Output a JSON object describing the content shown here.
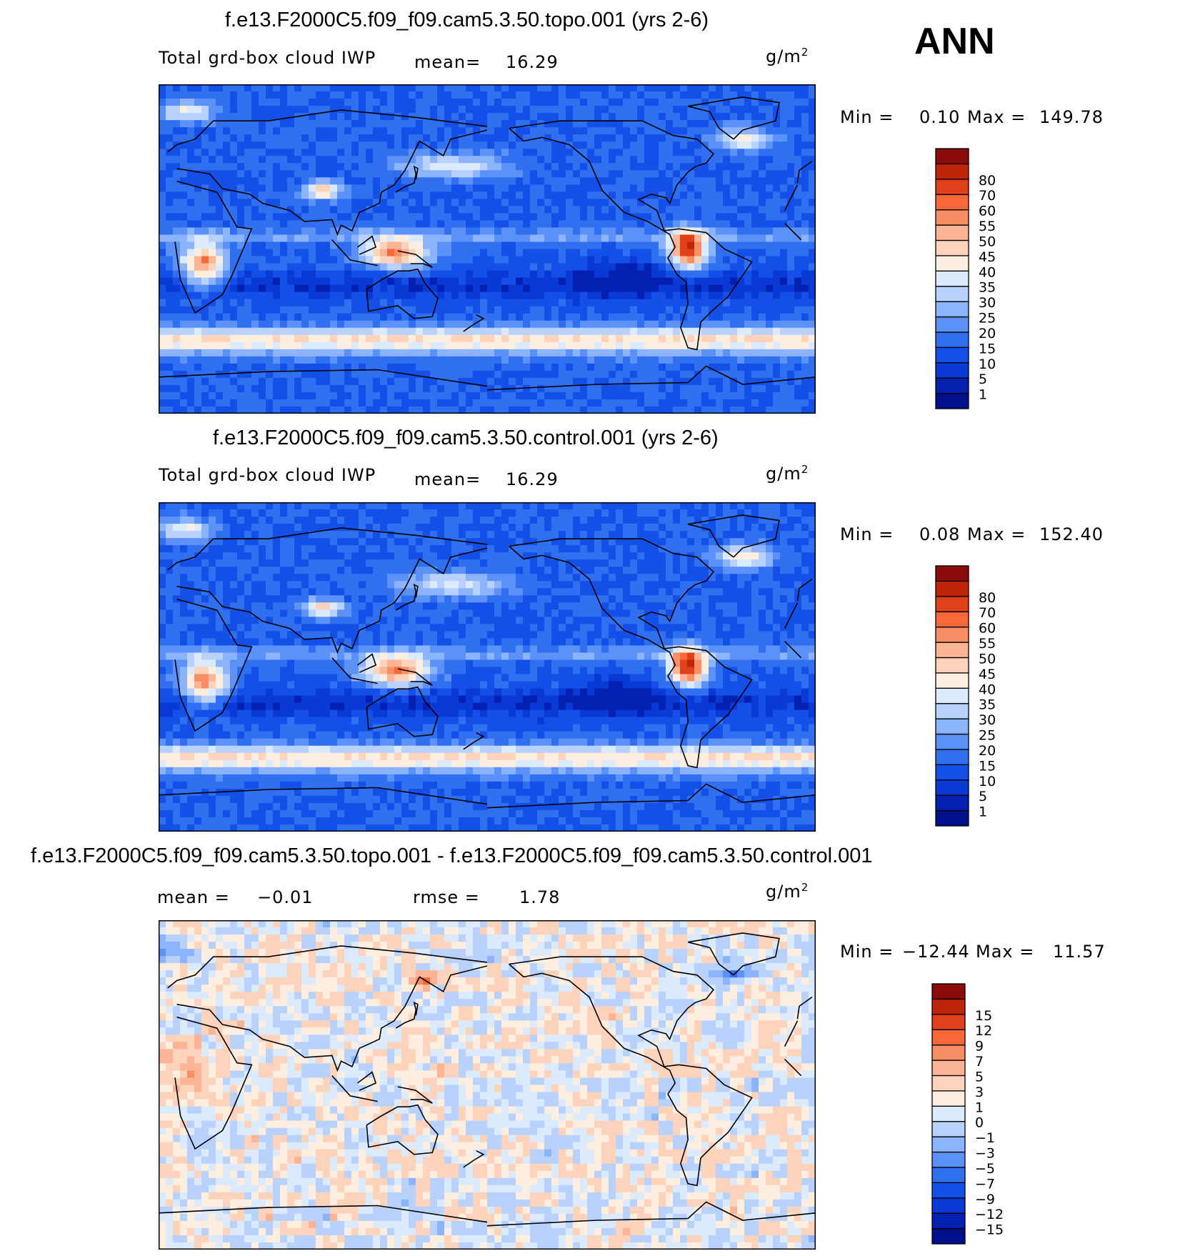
{
  "season": "ANN",
  "colors": {
    "abs_scale": [
      "#00108a",
      "#0420b0",
      "#0a3ad6",
      "#1450e8",
      "#3070f0",
      "#5c92f8",
      "#8cb4fc",
      "#b8d2fd",
      "#dceafd",
      "#fdeee0",
      "#fdd3bc",
      "#fbb494",
      "#f98e66",
      "#f86838",
      "#e0401a",
      "#bf2608",
      "#8b0a0a"
    ],
    "diff_scale": [
      "#00108a",
      "#0420b0",
      "#0a3ad6",
      "#1450e8",
      "#3070f0",
      "#5c92f8",
      "#8cb4fc",
      "#b8d2fd",
      "#dceafd",
      "#fdeee0",
      "#fdd3bc",
      "#fbb494",
      "#f98e66",
      "#f86838",
      "#e0401a",
      "#bf2608",
      "#8b0a0a"
    ]
  },
  "chart_data": [
    {
      "type": "heatmap",
      "id": "topo",
      "title": "f.e13.F2000C5.f09_f09.cam5.3.50.topo.001 (yrs 2-6)",
      "left_label": "Total grd-box cloud IWP",
      "mean_label": "mean=",
      "mean_value": "16.29",
      "units": "g/m",
      "units_sup": "2",
      "min_label": "Min =",
      "min_value": "0.10",
      "max_label": "Max =",
      "max_value": "149.78",
      "contour_levels": [
        "1",
        "5",
        "10",
        "15",
        "20",
        "25",
        "30",
        "35",
        "40",
        "45",
        "50",
        "55",
        "60",
        "70",
        "80"
      ]
    },
    {
      "type": "heatmap",
      "id": "control",
      "title": "f.e13.F2000C5.f09_f09.cam5.3.50.control.001 (yrs 2-6)",
      "left_label": "Total grd-box cloud IWP",
      "mean_label": "mean=",
      "mean_value": "16.29",
      "units": "g/m",
      "units_sup": "2",
      "min_label": "Min =",
      "min_value": "0.08",
      "max_label": "Max =",
      "max_value": "152.40",
      "contour_levels": [
        "1",
        "5",
        "10",
        "15",
        "20",
        "25",
        "30",
        "35",
        "40",
        "45",
        "50",
        "55",
        "60",
        "70",
        "80"
      ]
    },
    {
      "type": "heatmap",
      "id": "diff",
      "title": "f.e13.F2000C5.f09_f09.cam5.3.50.topo.001 - f.e13.F2000C5.f09_f09.cam5.3.50.control.001",
      "mean_label": "mean =",
      "mean_value": "−0.01",
      "rmse_label": "rmse =",
      "rmse_value": "1.78",
      "units": "g/m",
      "units_sup": "2",
      "min_label": "Min =",
      "min_value": "−12.44",
      "max_label": "Max =",
      "max_value": "11.57",
      "contour_levels": [
        "−15",
        "−12",
        "−9",
        "−7",
        "−5",
        "−3",
        "−1",
        "0",
        "1",
        "3",
        "5",
        "7",
        "9",
        "12",
        "15"
      ]
    }
  ]
}
